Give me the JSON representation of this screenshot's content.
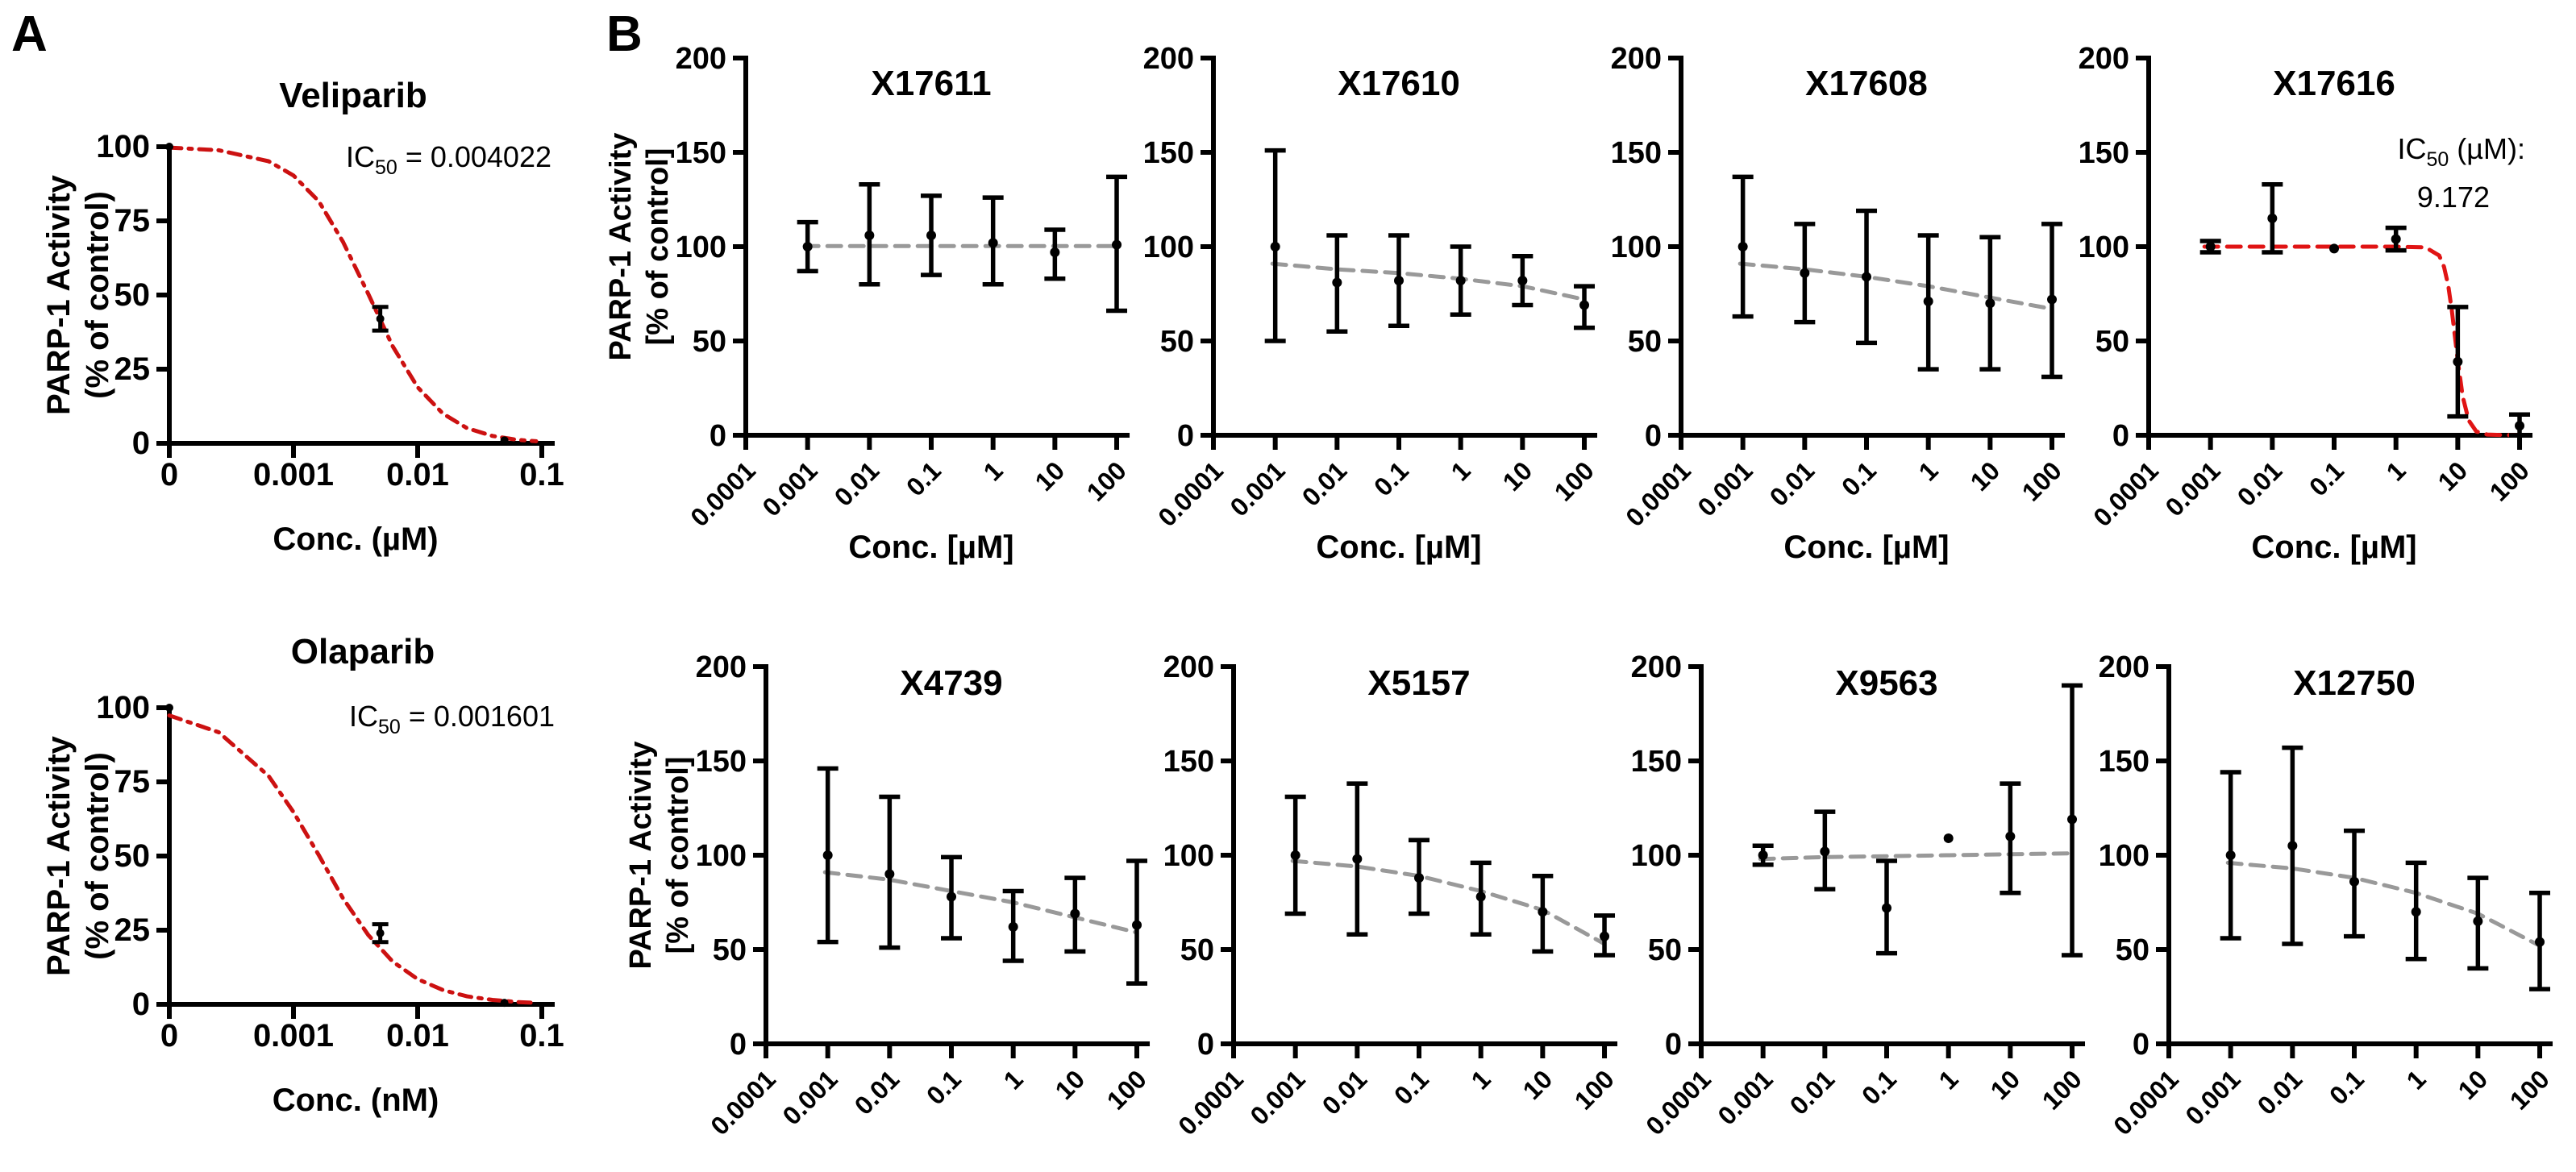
{
  "figure": {
    "panel_a_label": "A",
    "panel_b_label": "B"
  },
  "colors": {
    "axis_black": "#000000",
    "fit_red_a": "#cc1111",
    "fit_red_b": "#e01414",
    "trend_gray": "#999999"
  },
  "chart_data": [
    {
      "id": "veliparib",
      "type": "scatter",
      "panel": "A",
      "title": "Veliparib",
      "annotation": [
        {
          "pre": "IC",
          "sub": "50",
          "post": " = 0.004022"
        }
      ],
      "xlabel": "Conc. (µM)",
      "ylabel": [
        "PARP-1 Activity",
        "(% of control)"
      ],
      "x_tick_labels": [
        "0",
        "0.001",
        "0.01",
        "0.1"
      ],
      "y_ticks": [
        0,
        25,
        50,
        75,
        100
      ],
      "ylim": [
        0,
        100
      ],
      "points": [
        {
          "x": 0,
          "y": 100,
          "lo": null,
          "hi": null
        },
        {
          "x": 0.005,
          "y": 42,
          "lo": 38,
          "hi": 46
        },
        {
          "x": 0.05,
          "y": 1,
          "lo": null,
          "hi": null
        }
      ],
      "fit": {
        "label": "IC50 = 0.004022",
        "color": "red_a",
        "style": "dashdot",
        "pts": [
          [
            0.0001,
            99.7
          ],
          [
            0.00025,
            98.8
          ],
          [
            0.00063,
            95.1
          ],
          [
            0.001,
            90.3
          ],
          [
            0.0016,
            81.6
          ],
          [
            0.0025,
            68
          ],
          [
            0.004,
            50.4
          ],
          [
            0.0063,
            32.7
          ],
          [
            0.01,
            18.9
          ],
          [
            0.016,
            10
          ],
          [
            0.025,
            5.1
          ],
          [
            0.04,
            2.5
          ],
          [
            0.063,
            1.2
          ],
          [
            0.09,
            0.7
          ]
        ]
      }
    },
    {
      "id": "olaparib",
      "type": "scatter",
      "panel": "A",
      "title": "Olaparib",
      "annotation": [
        {
          "pre": "IC",
          "sub": "50",
          "post": " = 0.001601"
        }
      ],
      "xlabel": "Conc. (nM)",
      "ylabel": [
        "PARP-1 Activity",
        "(% of control)"
      ],
      "x_tick_labels": [
        "0",
        "0.001",
        "0.01",
        "0.1"
      ],
      "y_ticks": [
        0,
        25,
        50,
        75,
        100
      ],
      "ylim": [
        0,
        100
      ],
      "points": [
        {
          "x": 0,
          "y": 100,
          "lo": null,
          "hi": null
        },
        {
          "x": 0.005,
          "y": 24,
          "lo": 21,
          "hi": 27
        },
        {
          "x": 0.05,
          "y": 0.5,
          "lo": null,
          "hi": null
        }
      ],
      "fit": {
        "label": "IC50 = 0.001601",
        "color": "red_a",
        "style": "dashdot",
        "pts": [
          [
            0.0001,
            97.4
          ],
          [
            0.00025,
            91.7
          ],
          [
            0.00063,
            77
          ],
          [
            0.001,
            64.8
          ],
          [
            0.0016,
            50.3
          ],
          [
            0.0025,
            35.8
          ],
          [
            0.004,
            23.4
          ],
          [
            0.0063,
            14.4
          ],
          [
            0.01,
            8.5
          ],
          [
            0.016,
            4.8
          ],
          [
            0.025,
            2.7
          ],
          [
            0.04,
            1.5
          ],
          [
            0.063,
            0.8
          ],
          [
            0.09,
            0.5
          ]
        ]
      }
    },
    {
      "id": "x17611",
      "type": "scatter",
      "panel": "B-top",
      "title": "X17611",
      "annotation": [],
      "xlabel": "Conc. [µM]",
      "ylabel": [
        "PARP-1 Activity",
        "[% of control]"
      ],
      "x_tick_labels": [
        "0.0001",
        "0.001",
        "0.01",
        "0.1",
        "1",
        "10",
        "100"
      ],
      "y_ticks": [
        0,
        50,
        100,
        150,
        200
      ],
      "ylim": [
        0,
        200
      ],
      "points": [
        {
          "x": 0.001,
          "y": 100,
          "lo": 87,
          "hi": 113
        },
        {
          "x": 0.01,
          "y": 106,
          "lo": 80,
          "hi": 133
        },
        {
          "x": 0.1,
          "y": 106,
          "lo": 85,
          "hi": 127
        },
        {
          "x": 1,
          "y": 102,
          "lo": 80,
          "hi": 126
        },
        {
          "x": 10,
          "y": 97,
          "lo": 83,
          "hi": 109
        },
        {
          "x": 100,
          "y": 101,
          "lo": 66,
          "hi": 137
        }
      ],
      "fit": {
        "label": null,
        "color": "gray",
        "style": "dash",
        "pts": [
          [
            0.0009,
            100.3
          ],
          [
            100,
            100.3
          ]
        ]
      }
    },
    {
      "id": "x17610",
      "type": "scatter",
      "panel": "B-top",
      "title": "X17610",
      "annotation": [],
      "xlabel": "Conc. [µM]",
      "ylabel": null,
      "x_tick_labels": [
        "0.0001",
        "0.001",
        "0.01",
        "0.1",
        "1",
        "10",
        "100"
      ],
      "y_ticks": [
        0,
        50,
        100,
        150,
        200
      ],
      "ylim": [
        0,
        200
      ],
      "points": [
        {
          "x": 0.001,
          "y": 100,
          "lo": 50,
          "hi": 151
        },
        {
          "x": 0.01,
          "y": 81,
          "lo": 55,
          "hi": 106
        },
        {
          "x": 0.1,
          "y": 82,
          "lo": 58,
          "hi": 106
        },
        {
          "x": 1,
          "y": 82,
          "lo": 64,
          "hi": 100
        },
        {
          "x": 10,
          "y": 82,
          "lo": 69,
          "hi": 95
        },
        {
          "x": 100,
          "y": 69,
          "lo": 57,
          "hi": 79
        }
      ],
      "fit": {
        "label": null,
        "color": "gray",
        "style": "dash",
        "pts": [
          [
            0.0009,
            91
          ],
          [
            0.01,
            88
          ],
          [
            0.1,
            86
          ],
          [
            1,
            83
          ],
          [
            10,
            79
          ],
          [
            100,
            72
          ]
        ]
      }
    },
    {
      "id": "x17608",
      "type": "scatter",
      "panel": "B-top",
      "title": "X17608",
      "annotation": [],
      "xlabel": "Conc. [µM]",
      "ylabel": null,
      "x_tick_labels": [
        "0.0001",
        "0.001",
        "0.01",
        "0.1",
        "1",
        "10",
        "100"
      ],
      "y_ticks": [
        0,
        50,
        100,
        150,
        200
      ],
      "ylim": [
        0,
        200
      ],
      "points": [
        {
          "x": 0.001,
          "y": 100,
          "lo": 63,
          "hi": 137
        },
        {
          "x": 0.01,
          "y": 86,
          "lo": 60,
          "hi": 112
        },
        {
          "x": 0.1,
          "y": 84,
          "lo": 49,
          "hi": 119
        },
        {
          "x": 1,
          "y": 71,
          "lo": 35,
          "hi": 106
        },
        {
          "x": 10,
          "y": 70,
          "lo": 35,
          "hi": 105
        },
        {
          "x": 100,
          "y": 72,
          "lo": 31,
          "hi": 112
        }
      ],
      "fit": {
        "label": null,
        "color": "gray",
        "style": "dash",
        "pts": [
          [
            0.0009,
            91
          ],
          [
            0.01,
            88
          ],
          [
            0.1,
            84
          ],
          [
            1,
            79
          ],
          [
            10,
            73
          ],
          [
            100,
            67
          ]
        ]
      }
    },
    {
      "id": "x17616",
      "type": "scatter",
      "panel": "B-top",
      "title": "X17616",
      "annotation": [
        {
          "pre": "IC",
          "sub": "50",
          "post": " (µM):"
        },
        {
          "pre": "",
          "sub": "",
          "post": "9.172"
        }
      ],
      "xlabel": "Conc. [µM]",
      "ylabel": null,
      "x_tick_labels": [
        "0.0001",
        "0.001",
        "0.01",
        "0.1",
        "1",
        "10",
        "100"
      ],
      "y_ticks": [
        0,
        50,
        100,
        150,
        200
      ],
      "ylim": [
        0,
        200
      ],
      "ic50_um": 9.172,
      "points": [
        {
          "x": 0.001,
          "y": 100,
          "lo": 97,
          "hi": 103
        },
        {
          "x": 0.01,
          "y": 115,
          "lo": 97,
          "hi": 133
        },
        {
          "x": 0.1,
          "y": 99,
          "lo": null,
          "hi": null
        },
        {
          "x": 1,
          "y": 104,
          "lo": 98,
          "hi": 110
        },
        {
          "x": 10,
          "y": 39,
          "lo": 10,
          "hi": 68
        },
        {
          "x": 100,
          "y": 5,
          "lo": 0,
          "hi": 11
        }
      ],
      "fit": {
        "label": "IC50 (uM): 9.172",
        "color": "red_b",
        "style": "dash",
        "pts": [
          [
            0.0008,
            100
          ],
          [
            0.01,
            100
          ],
          [
            0.1,
            100
          ],
          [
            1,
            100
          ],
          [
            3,
            99.6
          ],
          [
            5,
            95.3
          ],
          [
            6,
            89.3
          ],
          [
            7,
            79.5
          ],
          [
            8,
            66.5
          ],
          [
            9.172,
            50
          ],
          [
            10,
            39.4
          ],
          [
            12,
            20.7
          ],
          [
            15,
            7.9
          ],
          [
            20,
            2
          ],
          [
            30,
            0.4
          ],
          [
            60,
            0.1
          ],
          [
            100,
            0.1
          ]
        ]
      }
    },
    {
      "id": "x4739",
      "type": "scatter",
      "panel": "B-bottom",
      "title": "X4739",
      "annotation": [],
      "xlabel": null,
      "ylabel": [
        "PARP-1 Activity",
        "[% of control]"
      ],
      "x_tick_labels": [
        "0.0001",
        "0.001",
        "0.01",
        "0.1",
        "1",
        "10",
        "100"
      ],
      "y_ticks": [
        0,
        50,
        100,
        150,
        200
      ],
      "ylim": [
        0,
        200
      ],
      "points": [
        {
          "x": 0.001,
          "y": 100,
          "lo": 54,
          "hi": 146
        },
        {
          "x": 0.01,
          "y": 90,
          "lo": 51,
          "hi": 131
        },
        {
          "x": 0.1,
          "y": 78,
          "lo": 56,
          "hi": 99
        },
        {
          "x": 1,
          "y": 62,
          "lo": 44,
          "hi": 81
        },
        {
          "x": 10,
          "y": 69,
          "lo": 49,
          "hi": 88
        },
        {
          "x": 100,
          "y": 63,
          "lo": 32,
          "hi": 97
        }
      ],
      "fit": {
        "label": null,
        "color": "gray",
        "style": "dash",
        "pts": [
          [
            0.0009,
            91
          ],
          [
            0.01,
            87
          ],
          [
            0.1,
            81
          ],
          [
            1,
            75
          ],
          [
            10,
            67
          ],
          [
            100,
            59
          ]
        ]
      }
    },
    {
      "id": "x5157",
      "type": "scatter",
      "panel": "B-bottom",
      "title": "X5157",
      "annotation": [],
      "xlabel": null,
      "ylabel": null,
      "x_tick_labels": [
        "0.0001",
        "0.001",
        "0.01",
        "0.1",
        "1",
        "10",
        "100"
      ],
      "y_ticks": [
        0,
        50,
        100,
        150,
        200
      ],
      "ylim": [
        0,
        200
      ],
      "points": [
        {
          "x": 0.001,
          "y": 100,
          "lo": 69,
          "hi": 131
        },
        {
          "x": 0.01,
          "y": 98,
          "lo": 58,
          "hi": 138
        },
        {
          "x": 0.1,
          "y": 88,
          "lo": 69,
          "hi": 108
        },
        {
          "x": 1,
          "y": 78,
          "lo": 58,
          "hi": 96
        },
        {
          "x": 10,
          "y": 70,
          "lo": 49,
          "hi": 89
        },
        {
          "x": 100,
          "y": 57,
          "lo": 47,
          "hi": 68
        }
      ],
      "fit": {
        "label": null,
        "color": "gray",
        "style": "dash",
        "pts": [
          [
            0.0009,
            97
          ],
          [
            0.01,
            94
          ],
          [
            0.1,
            89
          ],
          [
            1,
            81
          ],
          [
            10,
            71
          ],
          [
            100,
            53
          ]
        ]
      }
    },
    {
      "id": "x9563",
      "type": "scatter",
      "panel": "B-bottom",
      "title": "X9563",
      "annotation": [],
      "xlabel": null,
      "ylabel": null,
      "x_tick_labels": [
        "0.0001",
        "0.001",
        "0.01",
        "0.1",
        "1",
        "10",
        "100"
      ],
      "y_ticks": [
        0,
        50,
        100,
        150,
        200
      ],
      "ylim": [
        0,
        200
      ],
      "points": [
        {
          "x": 0.001,
          "y": 100,
          "lo": 95,
          "hi": 105
        },
        {
          "x": 0.01,
          "y": 102,
          "lo": 82,
          "hi": 123
        },
        {
          "x": 0.1,
          "y": 72,
          "lo": 48,
          "hi": 97
        },
        {
          "x": 1,
          "y": 109,
          "lo": null,
          "hi": null
        },
        {
          "x": 10,
          "y": 110,
          "lo": 80,
          "hi": 138
        },
        {
          "x": 100,
          "y": 119,
          "lo": 47,
          "hi": 190
        }
      ],
      "fit": {
        "label": null,
        "color": "gray",
        "style": "dash",
        "pts": [
          [
            0.0009,
            98
          ],
          [
            0.01,
            99
          ],
          [
            0.1,
            99.5
          ],
          [
            1,
            100
          ],
          [
            10,
            100.5
          ],
          [
            100,
            101
          ]
        ]
      }
    },
    {
      "id": "x12750",
      "type": "scatter",
      "panel": "B-bottom",
      "title": "X12750",
      "annotation": [],
      "xlabel": null,
      "ylabel": null,
      "x_tick_labels": [
        "0.0001",
        "0.001",
        "0.01",
        "0.1",
        "1",
        "10",
        "100"
      ],
      "y_ticks": [
        0,
        50,
        100,
        150,
        200
      ],
      "ylim": [
        0,
        200
      ],
      "points": [
        {
          "x": 0.001,
          "y": 100,
          "lo": 56,
          "hi": 144
        },
        {
          "x": 0.01,
          "y": 105,
          "lo": 53,
          "hi": 157
        },
        {
          "x": 0.1,
          "y": 86,
          "lo": 57,
          "hi": 113
        },
        {
          "x": 1,
          "y": 70,
          "lo": 45,
          "hi": 96
        },
        {
          "x": 10,
          "y": 65,
          "lo": 40,
          "hi": 88
        },
        {
          "x": 100,
          "y": 54,
          "lo": 29,
          "hi": 80
        }
      ],
      "fit": {
        "label": null,
        "color": "gray",
        "style": "dash",
        "pts": [
          [
            0.0009,
            96
          ],
          [
            0.01,
            93
          ],
          [
            0.1,
            88
          ],
          [
            1,
            80
          ],
          [
            10,
            69
          ],
          [
            100,
            52
          ]
        ]
      }
    }
  ]
}
